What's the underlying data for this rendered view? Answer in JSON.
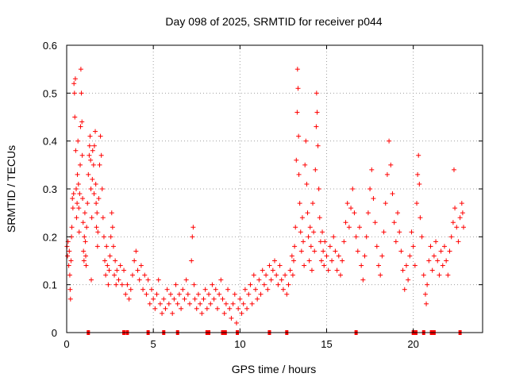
{
  "chart_data": {
    "type": "scatter",
    "title": "Day 098 of 2025, SRMTID for receiver p044",
    "xlabel": "GPS time / hours",
    "ylabel": "SRMTID / TECUs",
    "xlim": [
      0,
      24
    ],
    "ylim": [
      0,
      0.6
    ],
    "x_ticks": [
      0,
      5,
      10,
      15,
      20
    ],
    "x_tick_labels": [
      "0",
      "5",
      "10",
      "15",
      "20"
    ],
    "y_ticks": [
      0,
      0.1,
      0.2,
      0.3,
      0.4,
      0.5,
      0.6
    ],
    "y_tick_labels": [
      "0",
      "0.1",
      "0.2",
      "0.3",
      "0.4",
      "0.5",
      "0.6"
    ],
    "grid": true,
    "marker": "+",
    "color": "#ff0000",
    "zero_markers_x": [
      1.25,
      3.3,
      3.5,
      4.7,
      5.6,
      6.4,
      8.1,
      8.2,
      9.0,
      9.15,
      9.85,
      11.7,
      12.7,
      16.7,
      20.0,
      20.15,
      20.6,
      21.05,
      21.2,
      22.7
    ],
    "series": [
      {
        "name": "SRMTID",
        "points": [
          [
            0.02,
            0.18
          ],
          [
            0.05,
            0.16
          ],
          [
            0.08,
            0.19
          ],
          [
            0.12,
            0.14
          ],
          [
            0.15,
            0.17
          ],
          [
            0.18,
            0.12
          ],
          [
            0.2,
            0.09
          ],
          [
            0.22,
            0.07
          ],
          [
            0.25,
            0.15
          ],
          [
            0.28,
            0.2
          ],
          [
            0.3,
            0.22
          ],
          [
            0.33,
            0.28
          ],
          [
            0.36,
            0.26
          ],
          [
            0.4,
            0.29
          ],
          [
            0.42,
            0.52
          ],
          [
            0.45,
            0.5
          ],
          [
            0.47,
            0.45
          ],
          [
            0.5,
            0.53
          ],
          [
            0.52,
            0.38
          ],
          [
            0.55,
            0.3
          ],
          [
            0.57,
            0.24
          ],
          [
            0.6,
            0.27
          ],
          [
            0.62,
            0.33
          ],
          [
            0.65,
            0.4
          ],
          [
            0.68,
            0.31
          ],
          [
            0.7,
            0.26
          ],
          [
            0.72,
            0.21
          ],
          [
            0.75,
            0.29
          ],
          [
            0.78,
            0.35
          ],
          [
            0.8,
            0.43
          ],
          [
            0.82,
            0.55
          ],
          [
            0.85,
            0.5
          ],
          [
            0.88,
            0.44
          ],
          [
            0.9,
            0.37
          ],
          [
            0.92,
            0.28
          ],
          [
            0.95,
            0.23
          ],
          [
            0.97,
            0.17
          ],
          [
            1.0,
            0.15
          ],
          [
            1.02,
            0.2
          ],
          [
            1.05,
            0.25
          ],
          [
            1.08,
            0.19
          ],
          [
            1.1,
            0.16
          ],
          [
            1.12,
            0.14
          ],
          [
            1.15,
            0.22
          ],
          [
            1.2,
            0.27
          ],
          [
            1.25,
            0.33
          ],
          [
            1.3,
            0.37
          ],
          [
            1.32,
            0.39
          ],
          [
            1.35,
            0.41
          ],
          [
            1.38,
            0.36
          ],
          [
            1.4,
            0.3
          ],
          [
            1.42,
            0.11
          ],
          [
            1.45,
            0.24
          ],
          [
            1.48,
            0.32
          ],
          [
            1.5,
            0.38
          ],
          [
            1.55,
            0.35
          ],
          [
            1.58,
            0.29
          ],
          [
            1.6,
            0.39
          ],
          [
            1.65,
            0.42
          ],
          [
            1.68,
            0.31
          ],
          [
            1.7,
            0.27
          ],
          [
            1.72,
            0.22
          ],
          [
            1.75,
            0.25
          ],
          [
            1.78,
            0.18
          ],
          [
            1.8,
            0.21
          ],
          [
            1.85,
            0.28
          ],
          [
            1.9,
            0.35
          ],
          [
            1.95,
            0.41
          ],
          [
            2.0,
            0.37
          ],
          [
            2.05,
            0.3
          ],
          [
            2.1,
            0.24
          ],
          [
            2.15,
            0.2
          ],
          [
            2.2,
            0.15
          ],
          [
            2.25,
            0.12
          ],
          [
            2.3,
            0.18
          ],
          [
            2.35,
            0.14
          ],
          [
            2.4,
            0.1
          ],
          [
            2.45,
            0.13
          ],
          [
            2.5,
            0.16
          ],
          [
            2.55,
            0.2
          ],
          [
            2.6,
            0.25
          ],
          [
            2.65,
            0.22
          ],
          [
            2.7,
            0.18
          ],
          [
            2.75,
            0.12
          ],
          [
            2.8,
            0.15
          ],
          [
            2.85,
            0.1
          ],
          [
            2.9,
            0.13
          ],
          [
            3.0,
            0.11
          ],
          [
            3.1,
            0.14
          ],
          [
            3.2,
            0.1
          ],
          [
            3.3,
            0.13
          ],
          [
            3.4,
            0.08
          ],
          [
            3.5,
            0.1
          ],
          [
            3.6,
            0.07
          ],
          [
            3.7,
            0.09
          ],
          [
            3.8,
            0.12
          ],
          [
            3.9,
            0.15
          ],
          [
            4.0,
            0.17
          ],
          [
            4.1,
            0.13
          ],
          [
            4.2,
            0.11
          ],
          [
            4.3,
            0.14
          ],
          [
            4.4,
            0.09
          ],
          [
            4.5,
            0.12
          ],
          [
            4.6,
            0.08
          ],
          [
            4.7,
            0.11
          ],
          [
            4.8,
            0.06
          ],
          [
            4.9,
            0.09
          ],
          [
            5.0,
            0.07
          ],
          [
            5.1,
            0.05
          ],
          [
            5.2,
            0.08
          ],
          [
            5.3,
            0.11
          ],
          [
            5.4,
            0.06
          ],
          [
            5.5,
            0.04
          ],
          [
            5.6,
            0.07
          ],
          [
            5.7,
            0.05
          ],
          [
            5.8,
            0.09
          ],
          [
            5.9,
            0.06
          ],
          [
            6.0,
            0.08
          ],
          [
            6.1,
            0.04
          ],
          [
            6.2,
            0.07
          ],
          [
            6.3,
            0.1
          ],
          [
            6.4,
            0.06
          ],
          [
            6.5,
            0.08
          ],
          [
            6.6,
            0.05
          ],
          [
            6.7,
            0.09
          ],
          [
            6.8,
            0.07
          ],
          [
            6.9,
            0.11
          ],
          [
            7.0,
            0.08
          ],
          [
            7.1,
            0.06
          ],
          [
            7.2,
            0.15
          ],
          [
            7.25,
            0.2
          ],
          [
            7.3,
            0.22
          ],
          [
            7.35,
            0.1
          ],
          [
            7.4,
            0.07
          ],
          [
            7.5,
            0.05
          ],
          [
            7.6,
            0.08
          ],
          [
            7.7,
            0.06
          ],
          [
            7.8,
            0.04
          ],
          [
            7.9,
            0.07
          ],
          [
            8.0,
            0.09
          ],
          [
            8.1,
            0.05
          ],
          [
            8.2,
            0.08
          ],
          [
            8.3,
            0.06
          ],
          [
            8.4,
            0.1
          ],
          [
            8.5,
            0.07
          ],
          [
            8.6,
            0.09
          ],
          [
            8.7,
            0.05
          ],
          [
            8.8,
            0.08
          ],
          [
            8.9,
            0.11
          ],
          [
            9.0,
            0.07
          ],
          [
            9.1,
            0.04
          ],
          [
            9.2,
            0.06
          ],
          [
            9.3,
            0.09
          ],
          [
            9.4,
            0.05
          ],
          [
            9.5,
            0.03
          ],
          [
            9.6,
            0.06
          ],
          [
            9.7,
            0.08
          ],
          [
            9.8,
            0.02
          ],
          [
            9.9,
            0.05
          ],
          [
            10.0,
            0.07
          ],
          [
            10.1,
            0.04
          ],
          [
            10.2,
            0.06
          ],
          [
            10.3,
            0.09
          ],
          [
            10.4,
            0.05
          ],
          [
            10.5,
            0.08
          ],
          [
            10.6,
            0.1
          ],
          [
            10.7,
            0.06
          ],
          [
            10.8,
            0.12
          ],
          [
            10.9,
            0.09
          ],
          [
            11.0,
            0.07
          ],
          [
            11.1,
            0.11
          ],
          [
            11.2,
            0.08
          ],
          [
            11.3,
            0.13
          ],
          [
            11.4,
            0.1
          ],
          [
            11.5,
            0.12
          ],
          [
            11.6,
            0.09
          ],
          [
            11.7,
            0.14
          ],
          [
            11.8,
            0.11
          ],
          [
            11.9,
            0.13
          ],
          [
            12.0,
            0.15
          ],
          [
            12.1,
            0.12
          ],
          [
            12.2,
            0.1
          ],
          [
            12.3,
            0.14
          ],
          [
            12.4,
            0.11
          ],
          [
            12.5,
            0.09
          ],
          [
            12.6,
            0.12
          ],
          [
            12.7,
            0.08
          ],
          [
            12.8,
            0.1
          ],
          [
            12.9,
            0.13
          ],
          [
            13.0,
            0.16
          ],
          [
            13.05,
            0.12
          ],
          [
            13.1,
            0.15
          ],
          [
            13.15,
            0.18
          ],
          [
            13.2,
            0.22
          ],
          [
            13.25,
            0.36
          ],
          [
            13.3,
            0.46
          ],
          [
            13.32,
            0.55
          ],
          [
            13.35,
            0.51
          ],
          [
            13.38,
            0.41
          ],
          [
            13.4,
            0.33
          ],
          [
            13.45,
            0.27
          ],
          [
            13.5,
            0.21
          ],
          [
            13.55,
            0.17
          ],
          [
            13.6,
            0.24
          ],
          [
            13.65,
            0.19
          ],
          [
            13.7,
            0.14
          ],
          [
            13.75,
            0.35
          ],
          [
            13.8,
            0.4
          ],
          [
            13.85,
            0.31
          ],
          [
            13.9,
            0.25
          ],
          [
            13.95,
            0.2
          ],
          [
            14.0,
            0.15
          ],
          [
            14.05,
            0.22
          ],
          [
            14.1,
            0.18
          ],
          [
            14.15,
            0.13
          ],
          [
            14.2,
            0.27
          ],
          [
            14.25,
            0.21
          ],
          [
            14.3,
            0.17
          ],
          [
            14.35,
            0.34
          ],
          [
            14.4,
            0.43
          ],
          [
            14.42,
            0.5
          ],
          [
            14.45,
            0.46
          ],
          [
            14.5,
            0.39
          ],
          [
            14.55,
            0.3
          ],
          [
            14.6,
            0.24
          ],
          [
            14.65,
            0.19
          ],
          [
            14.7,
            0.15
          ],
          [
            14.75,
            0.21
          ],
          [
            14.8,
            0.17
          ],
          [
            14.85,
            0.14
          ],
          [
            14.9,
            0.19
          ],
          [
            15.0,
            0.16
          ],
          [
            15.1,
            0.13
          ],
          [
            15.2,
            0.18
          ],
          [
            15.3,
            0.15
          ],
          [
            15.4,
            0.2
          ],
          [
            15.5,
            0.17
          ],
          [
            15.6,
            0.13
          ],
          [
            15.7,
            0.16
          ],
          [
            15.8,
            0.12
          ],
          [
            15.9,
            0.15
          ],
          [
            16.0,
            0.19
          ],
          [
            16.1,
            0.23
          ],
          [
            16.2,
            0.27
          ],
          [
            16.3,
            0.22
          ],
          [
            16.4,
            0.26
          ],
          [
            16.5,
            0.3
          ],
          [
            16.6,
            0.25
          ],
          [
            16.7,
            0.2
          ],
          [
            16.8,
            0.17
          ],
          [
            16.9,
            0.22
          ],
          [
            17.0,
            0.14
          ],
          [
            17.1,
            0.11
          ],
          [
            17.2,
            0.16
          ],
          [
            17.3,
            0.2
          ],
          [
            17.4,
            0.25
          ],
          [
            17.5,
            0.3
          ],
          [
            17.6,
            0.34
          ],
          [
            17.7,
            0.28
          ],
          [
            17.8,
            0.23
          ],
          [
            17.9,
            0.18
          ],
          [
            18.0,
            0.14
          ],
          [
            18.1,
            0.12
          ],
          [
            18.2,
            0.16
          ],
          [
            18.3,
            0.21
          ],
          [
            18.4,
            0.27
          ],
          [
            18.5,
            0.33
          ],
          [
            18.6,
            0.4
          ],
          [
            18.7,
            0.35
          ],
          [
            18.8,
            0.29
          ],
          [
            18.9,
            0.23
          ],
          [
            19.0,
            0.19
          ],
          [
            19.1,
            0.25
          ],
          [
            19.2,
            0.21
          ],
          [
            19.3,
            0.17
          ],
          [
            19.4,
            0.13
          ],
          [
            19.5,
            0.09
          ],
          [
            19.6,
            0.14
          ],
          [
            19.7,
            0.11
          ],
          [
            19.8,
            0.16
          ],
          [
            19.9,
            0.21
          ],
          [
            20.0,
            0.18
          ],
          [
            20.1,
            0.14
          ],
          [
            20.2,
            0.27
          ],
          [
            20.25,
            0.33
          ],
          [
            20.3,
            0.37
          ],
          [
            20.35,
            0.31
          ],
          [
            20.4,
            0.24
          ],
          [
            20.5,
            0.2
          ],
          [
            20.6,
            0.12
          ],
          [
            20.7,
            0.08
          ],
          [
            20.75,
            0.06
          ],
          [
            20.8,
            0.1
          ],
          [
            20.9,
            0.15
          ],
          [
            21.0,
            0.18
          ],
          [
            21.1,
            0.13
          ],
          [
            21.2,
            0.16
          ],
          [
            21.3,
            0.19
          ],
          [
            21.4,
            0.15
          ],
          [
            21.5,
            0.12
          ],
          [
            21.6,
            0.17
          ],
          [
            21.7,
            0.14
          ],
          [
            21.8,
            0.18
          ],
          [
            21.9,
            0.15
          ],
          [
            22.0,
            0.12
          ],
          [
            22.1,
            0.17
          ],
          [
            22.2,
            0.2
          ],
          [
            22.3,
            0.23
          ],
          [
            22.35,
            0.34
          ],
          [
            22.4,
            0.26
          ],
          [
            22.5,
            0.22
          ],
          [
            22.6,
            0.19
          ],
          [
            22.7,
            0.24
          ],
          [
            22.8,
            0.27
          ],
          [
            22.85,
            0.25
          ],
          [
            22.9,
            0.22
          ]
        ]
      }
    ]
  }
}
